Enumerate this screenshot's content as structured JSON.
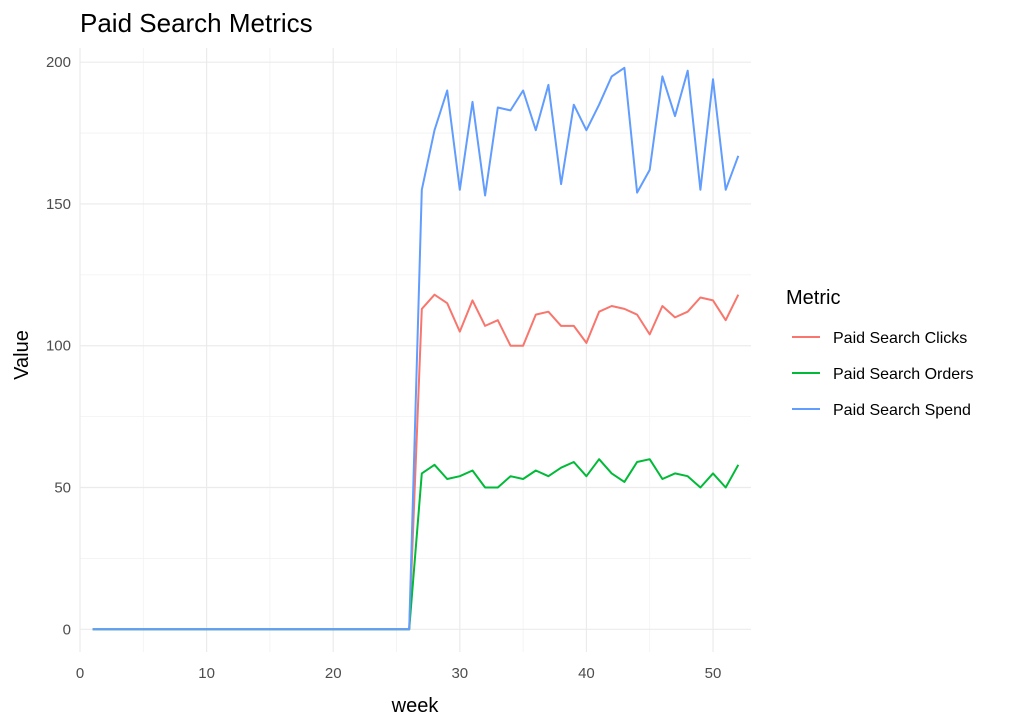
{
  "chart_data": {
    "type": "line",
    "title": "Paid Search Metrics",
    "xlabel": "week",
    "ylabel": "Value",
    "xlim": [
      0,
      53
    ],
    "ylim": [
      -8,
      205
    ],
    "x_ticks": [
      0,
      10,
      20,
      30,
      40,
      50
    ],
    "y_ticks": [
      0,
      50,
      100,
      150,
      200
    ],
    "grid": true,
    "legend": {
      "title": "Metric",
      "position": "right"
    },
    "x": [
      1,
      2,
      3,
      4,
      5,
      6,
      7,
      8,
      9,
      10,
      11,
      12,
      13,
      14,
      15,
      16,
      17,
      18,
      19,
      20,
      21,
      22,
      23,
      24,
      25,
      26,
      27,
      28,
      29,
      30,
      31,
      32,
      33,
      34,
      35,
      36,
      37,
      38,
      39,
      40,
      41,
      42,
      43,
      44,
      45,
      46,
      47,
      48,
      49,
      50,
      51,
      52
    ],
    "series": [
      {
        "name": "Paid Search Clicks",
        "color": "#F8766D",
        "values": [
          0,
          0,
          0,
          0,
          0,
          0,
          0,
          0,
          0,
          0,
          0,
          0,
          0,
          0,
          0,
          0,
          0,
          0,
          0,
          0,
          0,
          0,
          0,
          0,
          0,
          0,
          113,
          118,
          115,
          105,
          116,
          107,
          109,
          100,
          100,
          111,
          112,
          107,
          107,
          101,
          112,
          114,
          113,
          111,
          104,
          114,
          110,
          112,
          117,
          116,
          109,
          118
        ]
      },
      {
        "name": "Paid Search Orders",
        "color": "#00BA38",
        "values": [
          0,
          0,
          0,
          0,
          0,
          0,
          0,
          0,
          0,
          0,
          0,
          0,
          0,
          0,
          0,
          0,
          0,
          0,
          0,
          0,
          0,
          0,
          0,
          0,
          0,
          0,
          55,
          58,
          53,
          54,
          56,
          50,
          50,
          54,
          53,
          56,
          54,
          57,
          59,
          54,
          60,
          55,
          52,
          59,
          60,
          53,
          55,
          54,
          50,
          55,
          50,
          58
        ]
      },
      {
        "name": "Paid Search Spend",
        "color": "#619CFF",
        "values": [
          0,
          0,
          0,
          0,
          0,
          0,
          0,
          0,
          0,
          0,
          0,
          0,
          0,
          0,
          0,
          0,
          0,
          0,
          0,
          0,
          0,
          0,
          0,
          0,
          0,
          0,
          155,
          176,
          190,
          155,
          186,
          153,
          184,
          183,
          190,
          176,
          192,
          157,
          185,
          176,
          185,
          195,
          198,
          154,
          162,
          195,
          181,
          197,
          155,
          194,
          155,
          167
        ]
      }
    ]
  }
}
